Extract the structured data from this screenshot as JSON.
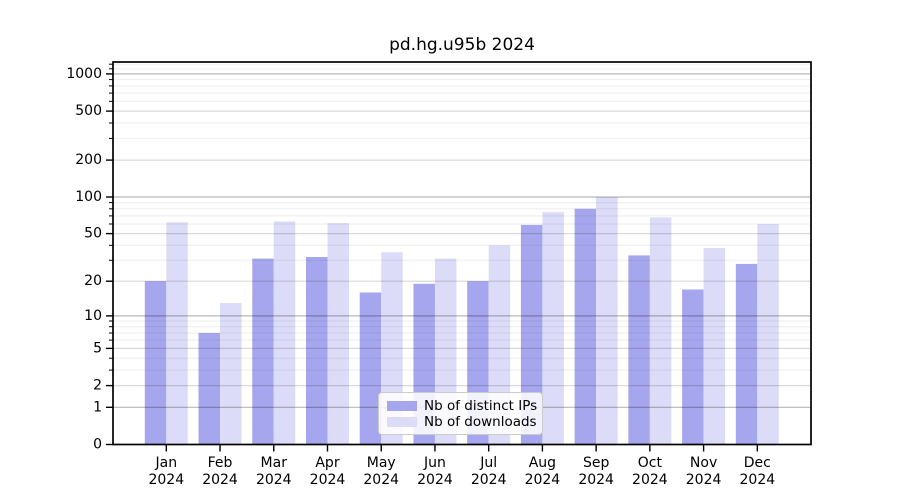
{
  "title": "pd.hg.u95b 2024",
  "legend": {
    "items": [
      {
        "label": "Nb of distinct IPs",
        "color": "#a6a6ee"
      },
      {
        "label": "Nb of downloads",
        "color": "#dcdcf8"
      }
    ]
  },
  "chart_data": {
    "type": "bar",
    "title": "pd.hg.u95b 2024",
    "categories": [
      "Jan 2024",
      "Feb 2024",
      "Mar 2024",
      "Apr 2024",
      "May 2024",
      "Jun 2024",
      "Jul 2024",
      "Aug 2024",
      "Sep 2024",
      "Oct 2024",
      "Nov 2024",
      "Dec 2024"
    ],
    "series": [
      {
        "name": "Nb of distinct IPs",
        "color": "#a6a6ee",
        "values": [
          20,
          7,
          31,
          32,
          16,
          19,
          20,
          59,
          80,
          33,
          17,
          28
        ]
      },
      {
        "name": "Nb of downloads",
        "color": "#dcdcf8",
        "values": [
          62,
          13,
          63,
          61,
          35,
          31,
          40,
          75,
          100,
          68,
          38,
          60
        ]
      }
    ],
    "xlabel": "",
    "ylabel": "",
    "yscale": "log1p",
    "yticks": [
      0,
      1,
      2,
      5,
      10,
      20,
      50,
      100,
      200,
      500,
      1000
    ],
    "ylim": [
      0,
      1250
    ],
    "grid": "both",
    "legend_position": "lower center"
  }
}
